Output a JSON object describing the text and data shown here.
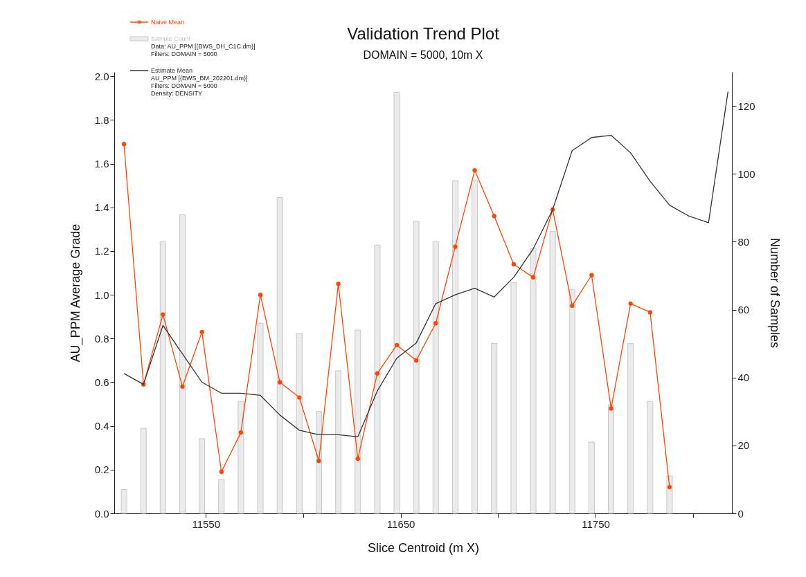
{
  "chart_data": {
    "type": "line",
    "title": "Validation Trend Plot",
    "subtitle": "DOMAIN = 5000, 10m X",
    "xlabel": "Slice Centroid (m X)",
    "ylabel": "AU_PPM Average Grade",
    "y2label": "Number of Samples",
    "x": [
      11508,
      11518,
      11528,
      11538,
      11548,
      11558,
      11568,
      11578,
      11588,
      11598,
      11608,
      11618,
      11628,
      11638,
      11648,
      11658,
      11668,
      11678,
      11688,
      11698,
      11708,
      11718,
      11728,
      11738,
      11748,
      11758,
      11768,
      11778,
      11788,
      11798,
      11808,
      11818
    ],
    "series": [
      {
        "name": "Naive Mean",
        "color": "#ff4500",
        "marker": "circle",
        "values": [
          1.69,
          0.59,
          0.91,
          0.58,
          0.83,
          0.19,
          0.37,
          1.0,
          0.6,
          0.53,
          0.24,
          1.05,
          0.25,
          0.64,
          0.77,
          0.7,
          0.87,
          1.22,
          1.57,
          1.36,
          1.14,
          1.08,
          1.39,
          0.95,
          1.09,
          0.48,
          0.96,
          0.92,
          0.12,
          null,
          null,
          null
        ]
      },
      {
        "name": "Sample Count",
        "type": "bar",
        "axis": "y2",
        "color": "#ebebeb",
        "values": [
          7,
          25,
          80,
          88,
          22,
          10,
          33,
          56,
          93,
          53,
          30,
          42,
          54,
          79,
          124,
          86,
          80,
          98,
          98,
          50,
          68,
          78,
          83,
          66,
          21,
          32,
          50,
          33,
          11,
          null,
          null,
          null
        ]
      },
      {
        "name": "Estimate Mean",
        "color": "#333333",
        "marker": "none",
        "values": [
          0.64,
          0.59,
          0.86,
          0.73,
          0.6,
          0.55,
          0.55,
          0.54,
          0.45,
          0.38,
          0.36,
          0.36,
          0.35,
          0.56,
          0.71,
          0.78,
          0.96,
          1.0,
          1.03,
          0.99,
          1.08,
          1.21,
          1.39,
          1.66,
          1.72,
          1.73,
          1.65,
          1.52,
          1.41,
          1.36,
          1.33,
          1.93
        ]
      }
    ],
    "annotations": [
      "Data: AU_PPM [(BWS_DH_C1C.dm)]",
      "Filters: DOMAIN = 5000",
      "AU_PPM [(BWS_BM_202201.dm)]",
      "Filters: DOMAIN = 5000",
      "Density: DENSITY"
    ],
    "xlim": [
      11503,
      11820
    ],
    "xticks": [
      11550,
      {
        "value": 11600,
        "label": null
      },
      11650,
      {
        "value": 11700,
        "label": null
      },
      11750,
      {
        "value": 11800,
        "label": null
      }
    ],
    "ylim": [
      0,
      2.02
    ],
    "yticks": [
      {
        "value": 0,
        "label": "0.0"
      },
      0.2,
      0.4,
      0.6,
      0.8,
      {
        "value": 1,
        "label": "1.0"
      },
      1.2,
      1.4,
      1.6,
      1.8,
      {
        "value": 2,
        "label": "2.0"
      }
    ],
    "y2lim": [
      0,
      130
    ],
    "y2ticks": [
      0,
      20,
      40,
      60,
      80,
      100,
      120
    ],
    "legend": "top left",
    "grid": false
  }
}
